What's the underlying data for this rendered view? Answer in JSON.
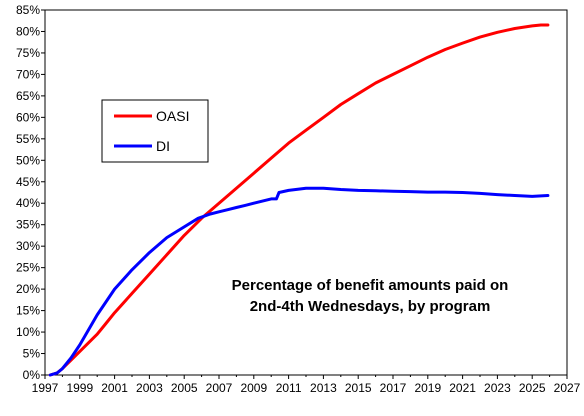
{
  "chart_data": {
    "type": "line",
    "title_lines": [
      "Percentage of benefit amounts paid on",
      "2nd-4th Wednesdays, by program"
    ],
    "xlabel": "",
    "ylabel": "",
    "xlim": [
      1997,
      2027
    ],
    "ylim": [
      0,
      85
    ],
    "x_ticks": [
      1997,
      1999,
      2001,
      2003,
      2005,
      2007,
      2009,
      2011,
      2013,
      2015,
      2017,
      2019,
      2021,
      2023,
      2025,
      2027
    ],
    "y_ticks": [
      0,
      5,
      10,
      15,
      20,
      25,
      30,
      35,
      40,
      45,
      50,
      55,
      60,
      65,
      70,
      75,
      80,
      85
    ],
    "y_tick_suffix": "%",
    "grid": false,
    "legend_position": "upper-left",
    "series": [
      {
        "name": "OASI",
        "color": "#ff0000",
        "x": [
          1997.3,
          1997.7,
          1998.0,
          1998.5,
          1999.0,
          1999.5,
          2000.0,
          2000.5,
          2001.0,
          2002.0,
          2003.0,
          2004.0,
          2005.0,
          2006.0,
          2007.0,
          2008.0,
          2009.0,
          2010.0,
          2011.0,
          2012.0,
          2013.0,
          2014.0,
          2015.0,
          2016.0,
          2017.0,
          2018.0,
          2019.0,
          2020.0,
          2021.0,
          2022.0,
          2023.0,
          2024.0,
          2025.0,
          2025.5,
          2025.9
        ],
        "y": [
          0.0,
          0.5,
          1.5,
          3.5,
          5.5,
          7.5,
          9.5,
          12.0,
          14.5,
          19.0,
          23.5,
          28.0,
          32.5,
          36.5,
          40.0,
          43.5,
          47.0,
          50.5,
          54.0,
          57.0,
          60.0,
          63.0,
          65.5,
          68.0,
          70.0,
          72.0,
          74.0,
          75.8,
          77.3,
          78.7,
          79.8,
          80.7,
          81.3,
          81.5,
          81.5
        ]
      },
      {
        "name": "DI",
        "color": "#0000ff",
        "x": [
          1997.3,
          1997.7,
          1998.0,
          1998.5,
          1999.0,
          1999.5,
          2000.0,
          2000.5,
          2001.0,
          2002.0,
          2003.0,
          2004.0,
          2005.0,
          2005.8,
          2006.5,
          2007.0,
          2007.5,
          2008.0,
          2008.5,
          2009.0,
          2009.5,
          2010.0,
          2010.3,
          2010.45,
          2011.0,
          2012.0,
          2013.0,
          2014.0,
          2015.0,
          2016.0,
          2017.0,
          2018.0,
          2019.0,
          2020.0,
          2021.0,
          2022.0,
          2023.0,
          2024.0,
          2025.0,
          2025.9
        ],
        "y": [
          0.0,
          0.5,
          1.5,
          4.0,
          7.0,
          10.5,
          14.0,
          17.0,
          20.0,
          24.5,
          28.5,
          32.0,
          34.5,
          36.5,
          37.5,
          38.0,
          38.5,
          39.0,
          39.5,
          40.0,
          40.5,
          41.0,
          41.0,
          42.5,
          43.0,
          43.5,
          43.5,
          43.2,
          43.0,
          42.9,
          42.8,
          42.7,
          42.6,
          42.6,
          42.5,
          42.3,
          42.0,
          41.8,
          41.6,
          41.8
        ]
      }
    ]
  }
}
